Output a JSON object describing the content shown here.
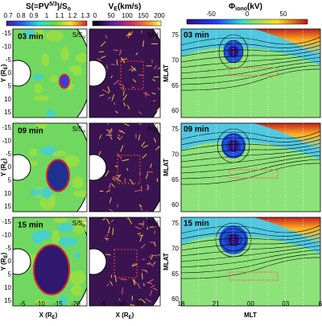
{
  "columns": {
    "s": [
      "S(=PV",
      "5/3",
      ")/S",
      "o"
    ],
    "v": [
      "V",
      "E",
      "(km/s)"
    ],
    "phi": [
      "Φ",
      "iono",
      "(kV)"
    ]
  },
  "colorbars": {
    "s": [
      "0.7",
      "0.8",
      "0.9",
      "1",
      "1.1",
      "1.2",
      "1.3"
    ],
    "v": [
      "0",
      "50",
      "100",
      "150",
      "200"
    ],
    "phi": [
      "-50",
      "0",
      "50"
    ]
  },
  "rows": [
    {
      "time": "03 min"
    },
    {
      "time": "09 min"
    },
    {
      "time": "15 min"
    }
  ],
  "panel_tags": {
    "s": [
      "S/S",
      "o"
    ],
    "v": [
      "|V",
      "E",
      "|"
    ]
  },
  "axes": {
    "y_label": [
      "Y (R",
      "E",
      ")"
    ],
    "y_ticks": [
      "-15",
      "-10",
      "-5",
      "0",
      "5",
      "10",
      "15"
    ],
    "x_label": [
      "X (R",
      "E",
      ")"
    ],
    "x_ticks_s": [
      "-5",
      "-10",
      "-15",
      "-20"
    ],
    "x_ticks_v": [
      "-5",
      "-10",
      "-15"
    ],
    "mlat_label": "MLAT",
    "mlat_ticks": [
      "75",
      "70",
      "65",
      "60"
    ],
    "mlt_label": "MLT",
    "mlt_ticks": [
      "18",
      "21",
      "00",
      "03",
      "6"
    ]
  }
}
